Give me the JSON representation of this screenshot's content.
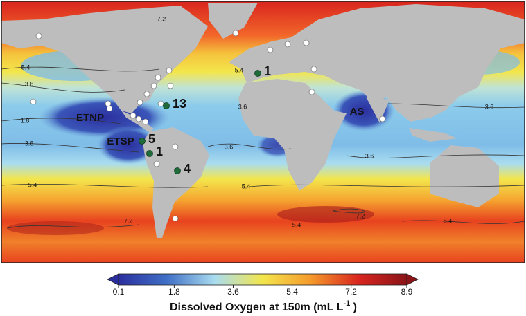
{
  "map": {
    "contour_labels": [
      7.2,
      5.4,
      5.4,
      3.6,
      3.6,
      3.6,
      1.8,
      3.6,
      3.6,
      3.6,
      5.4,
      5.4,
      7.2,
      5.4,
      7.2,
      5.4
    ],
    "regions": [
      "ETNP",
      "ETSP",
      "AS"
    ],
    "site_counts": [
      1,
      13,
      5,
      1,
      4
    ]
  },
  "colorbar": {
    "lim": [
      0.1,
      8.9
    ],
    "ticks": [
      0.1,
      1.8,
      3.6,
      5.4,
      7.2,
      8.9
    ],
    "colors": [
      "#2b2f9e",
      "#3f6fc6",
      "#a9dcef",
      "#f3e64c",
      "#f59a2c",
      "#d9251e",
      "#8a1418"
    ],
    "label": {
      "text": "Dissolved Oxygen at 150m (mL L",
      "superscript": "-1",
      "suffix": " )"
    }
  }
}
